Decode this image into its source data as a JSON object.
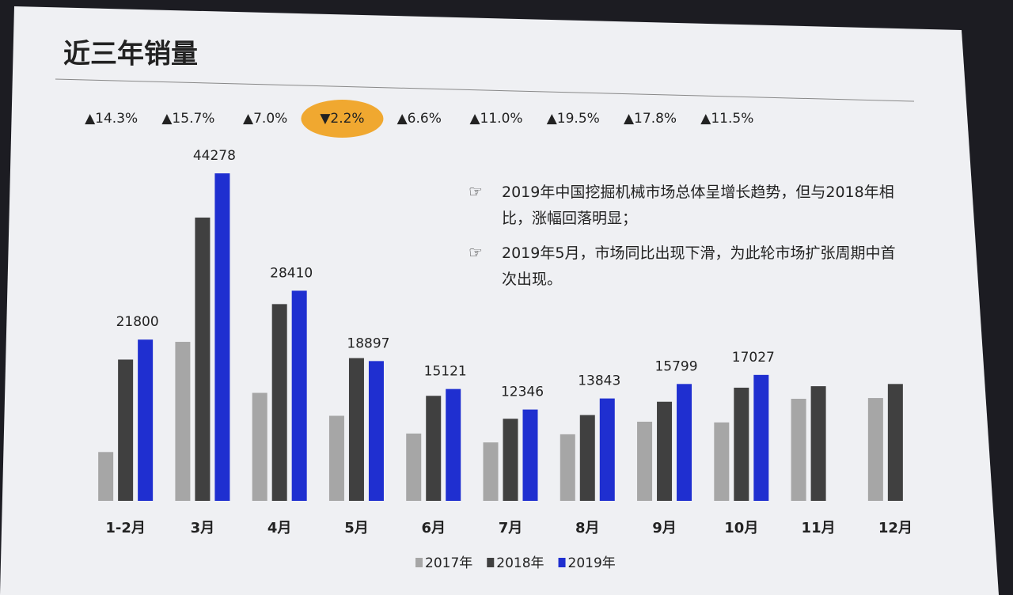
{
  "title": "近三年销量",
  "notes": [
    "2019年中国挖掘机械市场总体呈增长趋势，但与2018年相比，涨幅回落明显；",
    "2019年5月，市场同比出现下滑，为此轮市场扩张周期中首次出现。"
  ],
  "chart_data": {
    "type": "bar",
    "categories": [
      "1-2月",
      "3月",
      "4月",
      "5月",
      "6月",
      "7月",
      "8月",
      "9月",
      "10月",
      "11月",
      "12月"
    ],
    "series": [
      {
        "name": "2017年",
        "color": "#a6a6a6",
        "values": [
          6600,
          21500,
          14600,
          11500,
          9100,
          7900,
          9000,
          10700,
          10600,
          13800,
          13900
        ]
      },
      {
        "name": "2018年",
        "color": "#404040",
        "values": [
          19100,
          38300,
          26600,
          19300,
          14200,
          11100,
          11600,
          13400,
          15300,
          15500,
          15800
        ]
      },
      {
        "name": "2019年",
        "color": "#1f2fd0",
        "values": [
          21800,
          44278,
          28410,
          18897,
          15121,
          12346,
          13843,
          15799,
          17027,
          null,
          null
        ],
        "labels": true
      }
    ],
    "annotations": [
      "▲14.3%",
      "▲15.7%",
      "▲7.0%",
      "▼2.2%",
      "▲6.6%",
      "▲11.0%",
      "▲19.5%",
      "▲17.8%",
      "▲11.5%"
    ],
    "ylim": [
      0,
      46000
    ]
  }
}
